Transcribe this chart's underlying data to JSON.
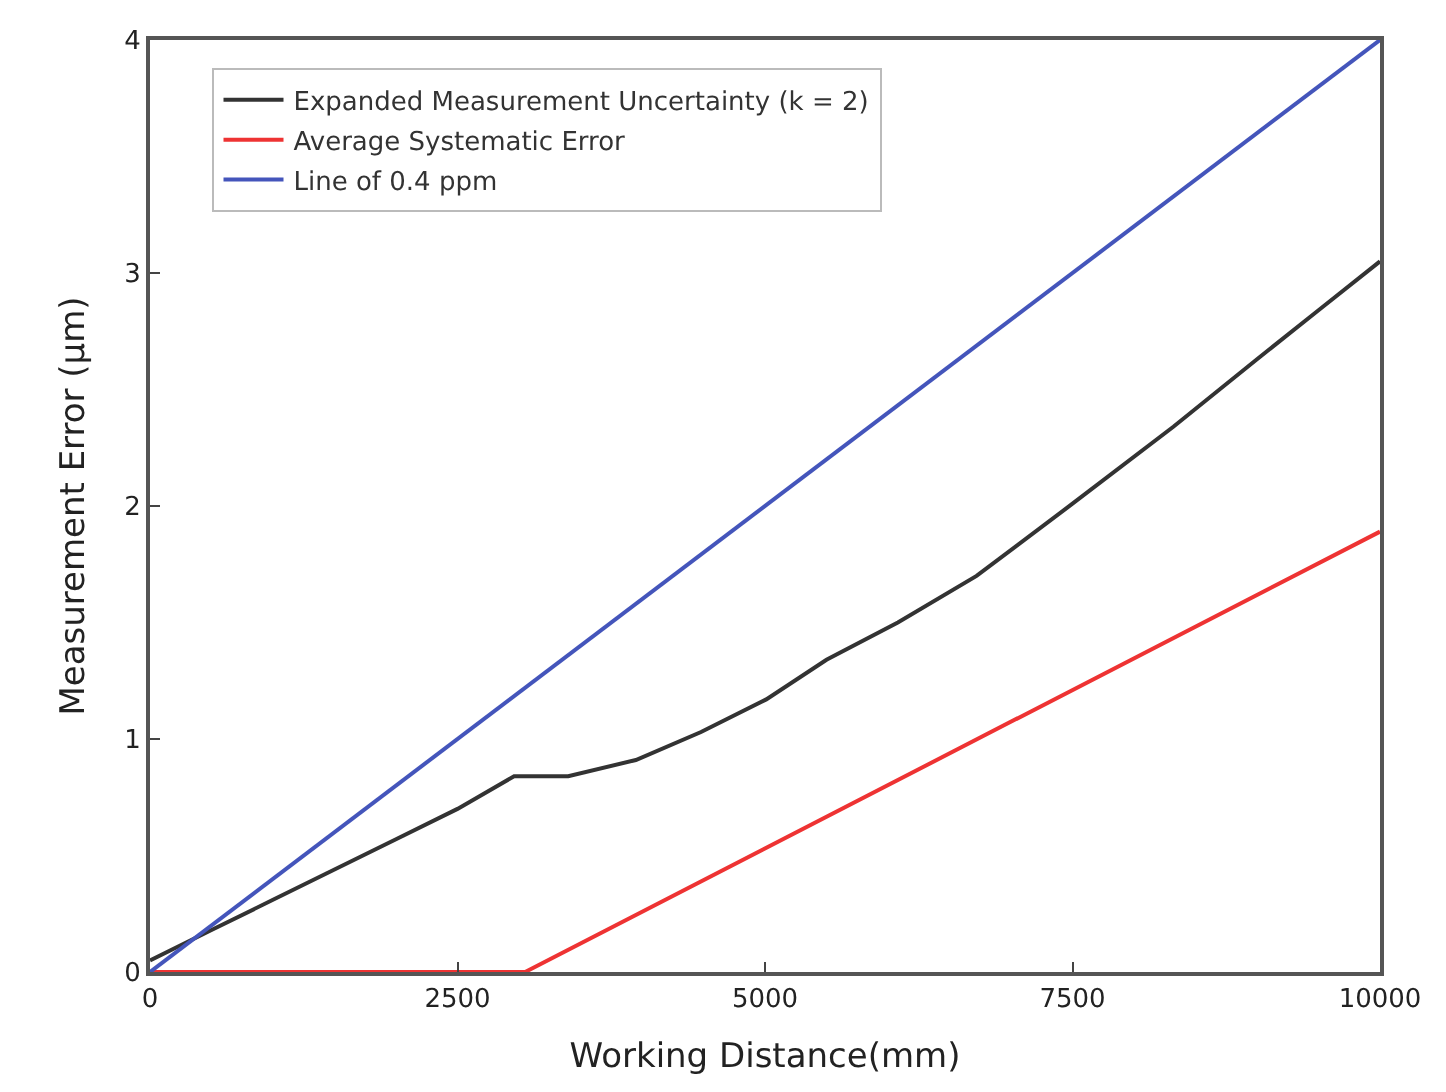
{
  "chart_data": {
    "type": "line",
    "xlabel": "Working Distance(mm)",
    "ylabel": "Measurement Error (µm)",
    "xlim": [
      0,
      10000
    ],
    "ylim": [
      0,
      4
    ],
    "xticks": [
      0,
      2500,
      5000,
      7500,
      10000
    ],
    "yticks": [
      0,
      1,
      2,
      3,
      4
    ],
    "legend": "top left",
    "line_style": "solid",
    "marker": "none",
    "series": [
      {
        "name": "Expanded Measurement Uncertainty (k = 2)",
        "color": "#333333",
        "x": [
          0,
          500,
          1000,
          1500,
          2000,
          2500,
          2960,
          3400,
          3950,
          4480,
          5010,
          5500,
          6080,
          6720,
          7500,
          8320,
          9000,
          9500,
          10000
        ],
        "values": [
          0.05,
          0.18,
          0.31,
          0.44,
          0.57,
          0.7,
          0.84,
          0.84,
          0.91,
          1.03,
          1.17,
          1.34,
          1.5,
          1.7,
          2.01,
          2.34,
          2.63,
          2.84,
          3.05
        ]
      },
      {
        "name": "Average Systematic Error",
        "color": "#ee3333",
        "x": [
          0,
          3050,
          10000
        ],
        "values": [
          0,
          0,
          1.89
        ]
      },
      {
        "name": "Line of 0.4 ppm",
        "color": "#4455bb",
        "x": [
          0,
          10000
        ],
        "values": [
          0,
          4
        ]
      }
    ]
  }
}
